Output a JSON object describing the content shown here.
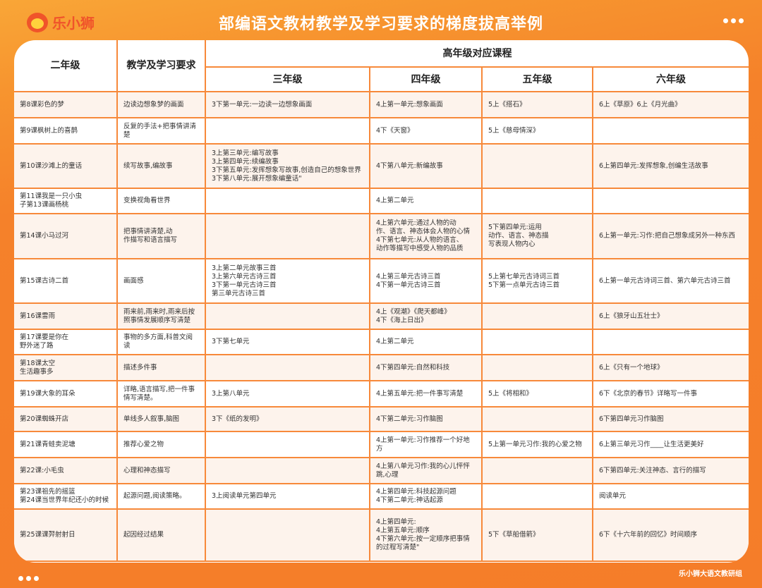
{
  "brand": {
    "logo_text": "乐小狮",
    "footer": "乐小狮大语文教研组"
  },
  "title": "部编语文教材教学及学习要求的梯度拔高举例",
  "colors": {
    "accent": "#f7893a",
    "background": "#f57f28",
    "row_alt": "#fdf3ec"
  },
  "headers": {
    "grade2": "二年级",
    "requirement": "教学及学习要求",
    "higher": "高年级对应课程",
    "grade3": "三年级",
    "grade4": "四年级",
    "grade5": "五年级",
    "grade6": "六年级"
  },
  "rows": [
    {
      "lesson": "第8课彩色的梦",
      "req": "边读边想象梦的画面",
      "g3": "3下第一单元:一边读一边想象画面",
      "g4": "4上第一单元:想象画面",
      "g5": "5上《搭石》",
      "g6": "6上《草原》6上《月光曲》"
    },
    {
      "lesson": "第9课枫树上的喜鹊",
      "req": "反复的手法+把事情讲清楚",
      "g3": "",
      "g4": "4下《天窗》",
      "g5": "5上《慈母情深》",
      "g6": ""
    },
    {
      "lesson": "第10课沙滩上的童话",
      "req": "续写故事,编故事",
      "g3": "3上第三单元:编写故事\n3上第四单元:续编故事\n3下第五单元:发挥想象写故事,创造自己的想象世界\n3下第八单元:展开想象编童话\"",
      "g4": "4下第八单元:新编故事",
      "g5": "",
      "g6": "6上第四单元:发挥想象,创编生活故事"
    },
    {
      "lesson": "第11课我是一只小虫\n子第13课画杨桃",
      "req": "变换视角看世界",
      "g3": "",
      "g4": "4上第二单元",
      "g5": "",
      "g6": ""
    },
    {
      "lesson": "第14课小马过河",
      "req": "把事情讲清楚,动\n作描写和语言描写",
      "g3": "",
      "g4": "4上第六单元:通过人物的动\n作、语言、神态体会人物的心情\n4下第七单元:从人物的语言、\n动作等描写中感受人物的品质",
      "g5": "5下第四单元:运用\n动作、语言、神态描\n写表现人物内心",
      "g6": "6上第一单元:习作:把自己想象成另外一种东西"
    },
    {
      "lesson": "第15课古诗二首",
      "req": "画面感",
      "g3": "3上第二单元故事三首\n3上第六单元古诗三首\n3下第一单元古诗三首\n第三单元古诗三首",
      "g4": "4上第三单元古诗三首\n4下第一单元古诗三首",
      "g5": "5上第七单元古诗词三首\n5下第一点单元古诗三首",
      "g6": "6上第一单元古诗词三首、第六单元古诗三首"
    },
    {
      "lesson": "第16课雷雨",
      "req": "雨来前,雨来时,雨来后按\n照事情发展顺序写清楚",
      "g3": "",
      "g4": "4上《观潮》《爬天都峰》\n4下《海上日出》",
      "g5": "",
      "g6": "6上《狼牙山五壮士》"
    },
    {
      "lesson": "第17课要是你在\n野外迷了路",
      "req": "事物的多方面,科普文阅读",
      "g3": "3下第七单元",
      "g4": "4上第二单元",
      "g5": "",
      "g6": ""
    },
    {
      "lesson": "第18课太空\n生活趣事多",
      "req": "描述多件事",
      "g3": "",
      "g4": "4下第四单元:自然和科技",
      "g5": "",
      "g6": "6上《只有一个地球》"
    },
    {
      "lesson": "第19课大象的耳朵",
      "req": "详略,语言描写,把一件事\n情写清楚。",
      "g3": "3上第八单元",
      "g4": "4上第五单元:把一件事写清楚",
      "g5": "5上《将相和》",
      "g6": "6下《北京的春节》详略写一件事"
    },
    {
      "lesson": "第20课蜘蛛开店",
      "req": "单线多人叙事,脑图",
      "g3": "3下《纸的发明》",
      "g4": "4下第二单元:习作脑图",
      "g5": "",
      "g6": "6下第四单元习作脑图"
    },
    {
      "lesson": "第21课青蛙卖泥塘",
      "req": "推荐心爱之物",
      "g3": "",
      "g4": "4上第一单元:习作推荐一个好地方",
      "g5": "5上第一单元习作:我的心爱之物",
      "g6": "6上第三单元习作____让生活更美好"
    },
    {
      "lesson": "第22课:小毛虫",
      "req": "心理和神态描写",
      "g3": "",
      "g4": "4上第八单元习作:我的心儿怦怦跳,心理",
      "g5": "",
      "g6": "6下第四单元:关注神态、言行的描写"
    },
    {
      "lesson": "第23课祖先的摇篮\n第24课当世界年纪还小的时候",
      "req": "起源问题,阅读策略。",
      "g3": "3上阅读单元第四单元",
      "g4": "4上第四单元:科技起源问题\n4下第二单元:神话起源",
      "g5": "",
      "g6": "阅读单元"
    },
    {
      "lesson": "第25课课羿射射日",
      "req": "起因经过结果",
      "g3": "",
      "g4": "4上第四单元:\n4上第五单元:顺序\n4下第六单元:按一定顺序把事情\n的过程写清楚\"",
      "g5": "5下《草船借箭》",
      "g6": "6下《十六年前的回忆》时间顺序"
    }
  ]
}
